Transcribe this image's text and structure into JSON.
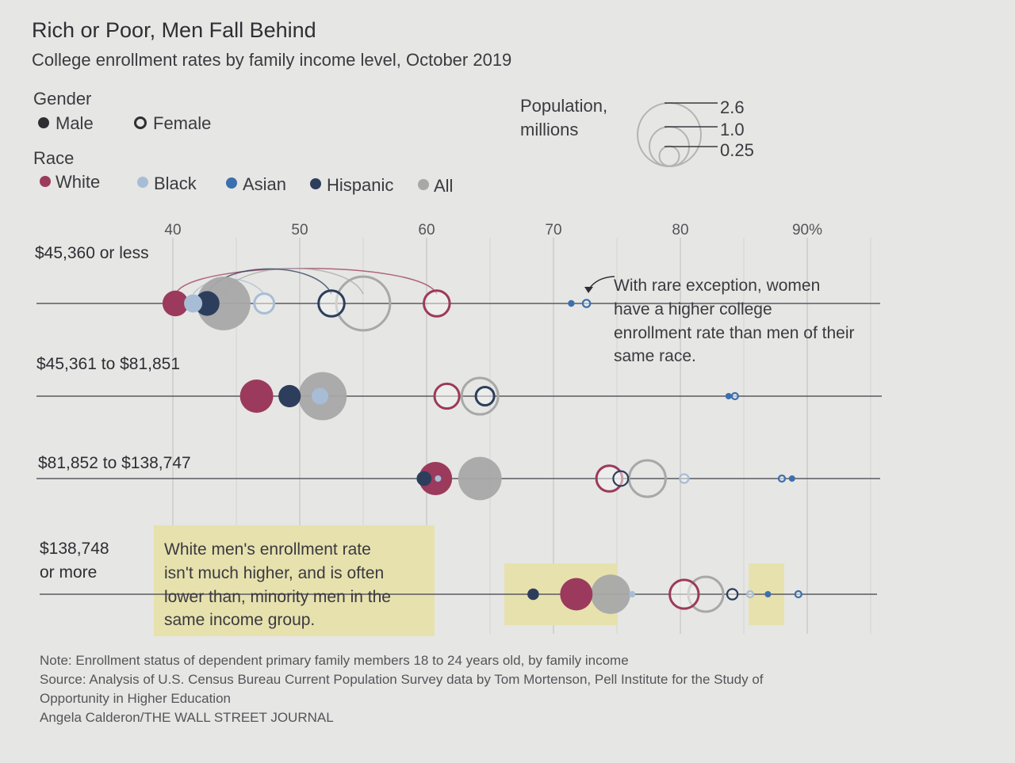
{
  "header": {
    "title": "Rich or Poor, Men Fall Behind",
    "subtitle": "College enrollment rates by family income level, October 2019"
  },
  "legend": {
    "gender_title": "Gender",
    "gender_items": [
      {
        "label": "Male",
        "style": "filled"
      },
      {
        "label": "Female",
        "style": "hollow"
      }
    ],
    "race_title": "Race",
    "race_items": [
      {
        "label": "White",
        "color": "#9b3a5c"
      },
      {
        "label": "Black",
        "color": "#a7bdd6"
      },
      {
        "label": "Asian",
        "color": "#3c6fae"
      },
      {
        "label": "Hispanic",
        "color": "#2c3e5c"
      },
      {
        "label": "All",
        "color": "#a8a8a8"
      }
    ],
    "population_title_1": "Population,",
    "population_title_2": "millions",
    "population_sizes": [
      {
        "label": "2.6",
        "value": 2.6
      },
      {
        "label": "1.0",
        "value": 1.0
      },
      {
        "label": "0.25",
        "value": 0.25
      }
    ]
  },
  "chart_data": {
    "type": "dot-plot",
    "title": "Rich or Poor, Men Fall Behind",
    "subtitle": "College enrollment rates by family income level, October 2019",
    "x_ticks": [
      "40",
      "50",
      "60",
      "70",
      "80",
      "90%"
    ],
    "x_tick_values": [
      40,
      50,
      60,
      70,
      80,
      90
    ],
    "xlim": [
      30,
      95
    ],
    "size_unit": "Population, millions",
    "colors": {
      "White": "#9b3a5c",
      "Black": "#a7bdd6",
      "Asian": "#3c6fae",
      "Hispanic": "#2c3e5c",
      "All": "#a8a8a8"
    },
    "bands": [
      {
        "label": "$45,360 or less",
        "points": [
          {
            "race": "White",
            "gender": "Male",
            "value": 40.2,
            "pop": 0.6
          },
          {
            "race": "All",
            "gender": "Male",
            "value": 44.0,
            "pop": 2.6
          },
          {
            "race": "Hispanic",
            "gender": "Male",
            "value": 42.7,
            "pop": 0.55
          },
          {
            "race": "Black",
            "gender": "Male",
            "value": 41.6,
            "pop": 0.3
          },
          {
            "race": "Black",
            "gender": "Female",
            "value": 47.2,
            "pop": 0.35
          },
          {
            "race": "Hispanic",
            "gender": "Female",
            "value": 52.5,
            "pop": 0.6
          },
          {
            "race": "All",
            "gender": "Female",
            "value": 55.0,
            "pop": 2.6
          },
          {
            "race": "White",
            "gender": "Female",
            "value": 60.8,
            "pop": 0.6
          },
          {
            "race": "Asian",
            "gender": "Male",
            "value": 71.4,
            "pop": 0.04
          },
          {
            "race": "Asian",
            "gender": "Female",
            "value": 72.6,
            "pop": 0.05
          }
        ]
      },
      {
        "label": "$45,361 to $81,851",
        "points": [
          {
            "race": "White",
            "gender": "Male",
            "value": 46.6,
            "pop": 1.0
          },
          {
            "race": "All",
            "gender": "Male",
            "value": 51.8,
            "pop": 2.1
          },
          {
            "race": "Hispanic",
            "gender": "Male",
            "value": 49.2,
            "pop": 0.45
          },
          {
            "race": "Black",
            "gender": "Male",
            "value": 51.6,
            "pop": 0.25
          },
          {
            "race": "White",
            "gender": "Female",
            "value": 61.6,
            "pop": 0.55
          },
          {
            "race": "All",
            "gender": "Female",
            "value": 64.2,
            "pop": 1.2
          },
          {
            "race": "Hispanic",
            "gender": "Female",
            "value": 64.6,
            "pop": 0.3
          },
          {
            "race": "Asian",
            "gender": "Male",
            "value": 83.8,
            "pop": 0.03
          },
          {
            "race": "Asian",
            "gender": "Female",
            "value": 84.3,
            "pop": 0.035
          }
        ]
      },
      {
        "label": "$81,852 to $138,747",
        "points": [
          {
            "race": "All",
            "gender": "Male",
            "value": 64.2,
            "pop": 1.7
          },
          {
            "race": "White",
            "gender": "Male",
            "value": 60.7,
            "pop": 1.0
          },
          {
            "race": "Hispanic",
            "gender": "Male",
            "value": 59.8,
            "pop": 0.2
          },
          {
            "race": "Black",
            "gender": "Male",
            "value": 60.9,
            "pop": 0.03
          },
          {
            "race": "White",
            "gender": "Female",
            "value": 74.4,
            "pop": 0.6
          },
          {
            "race": "All",
            "gender": "Female",
            "value": 77.4,
            "pop": 1.2
          },
          {
            "race": "Hispanic",
            "gender": "Female",
            "value": 75.3,
            "pop": 0.2
          },
          {
            "race": "Black",
            "gender": "Female",
            "value": 80.3,
            "pop": 0.07
          },
          {
            "race": "Asian",
            "gender": "Female",
            "value": 88.0,
            "pop": 0.03
          },
          {
            "race": "Asian",
            "gender": "Male",
            "value": 88.8,
            "pop": 0.035
          }
        ]
      },
      {
        "label_1": "$138,748",
        "label_2": "or more",
        "label": "$138,748 or more",
        "points": [
          {
            "race": "Hispanic",
            "gender": "Male",
            "value": 68.4,
            "pop": 0.12
          },
          {
            "race": "White",
            "gender": "Male",
            "value": 71.8,
            "pop": 0.95
          },
          {
            "race": "All",
            "gender": "Male",
            "value": 74.5,
            "pop": 1.4
          },
          {
            "race": "Black",
            "gender": "Male",
            "value": 76.2,
            "pop": 0.02
          },
          {
            "race": "All",
            "gender": "Female",
            "value": 82.0,
            "pop": 1.1
          },
          {
            "race": "White",
            "gender": "Female",
            "value": 80.3,
            "pop": 0.75
          },
          {
            "race": "Hispanic",
            "gender": "Female",
            "value": 84.1,
            "pop": 0.1
          },
          {
            "race": "Black",
            "gender": "Female",
            "value": 85.5,
            "pop": 0.03
          },
          {
            "race": "Asian",
            "gender": "Male",
            "value": 86.9,
            "pop": 0.035
          },
          {
            "race": "Asian",
            "gender": "Female",
            "value": 89.3,
            "pop": 0.03
          }
        ]
      }
    ],
    "annotations": [
      {
        "lines": [
          "With rare exception, women",
          "have a higher college",
          "enrollment rate than men of their",
          "same race."
        ]
      },
      {
        "lines": [
          "White men's enrollment rate",
          "isn't much higher, and is often",
          "lower than, minority men in the",
          "same income group."
        ]
      }
    ]
  },
  "footer": {
    "note": "Note: Enrollment status of dependent primary family members 18 to 24 years old, by family income",
    "source_1": "Source: Analysis of U.S. Census Bureau Current Population Survey data by Tom Mortenson, Pell Institute for the Study of",
    "source_2": "Opportunity in Higher Education",
    "credit": "Angela Calderon/THE WALL STREET JOURNAL"
  }
}
